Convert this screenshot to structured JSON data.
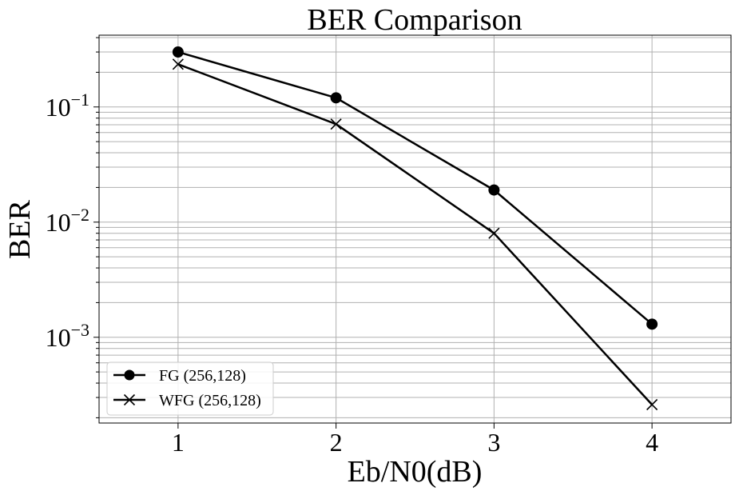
{
  "chart_data": {
    "type": "line",
    "title": "BER Comparison",
    "xlabel": "Eb/N0(dB)",
    "ylabel": "BER",
    "x": [
      1,
      2,
      3,
      4
    ],
    "xticks": [
      "1",
      "2",
      "3",
      "4"
    ],
    "xlim": [
      0.5,
      4.5
    ],
    "yscale": "log",
    "ylim": [
      0.00018,
      0.42
    ],
    "yticks": [
      {
        "base": "10",
        "exp": "−1",
        "value": 0.1
      },
      {
        "base": "10",
        "exp": "−2",
        "value": 0.01
      },
      {
        "base": "10",
        "exp": "−3",
        "value": 0.001
      }
    ],
    "grid": true,
    "grid_minor": true,
    "legend_position": "lower-left",
    "line_color": "#000000",
    "series": [
      {
        "name": "FG (256,128)",
        "marker": "circle",
        "values": [
          0.3,
          0.12,
          0.019,
          0.0013
        ]
      },
      {
        "name": "WFG (256,128)",
        "marker": "x",
        "values": [
          0.235,
          0.071,
          0.008,
          0.00026
        ]
      }
    ]
  }
}
